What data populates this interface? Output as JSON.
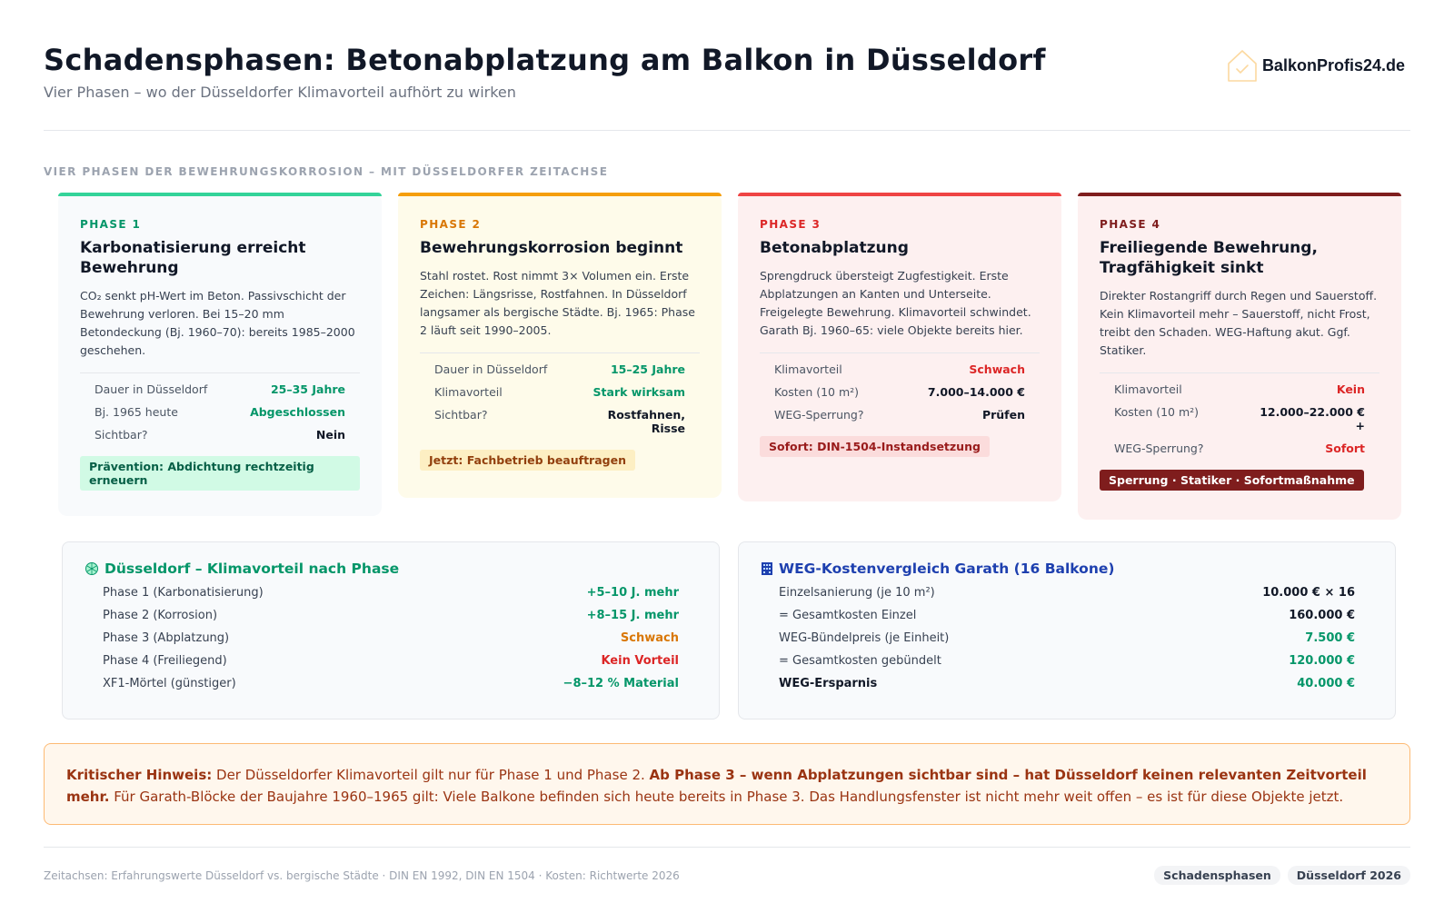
{
  "header": {
    "title": "Schadensphasen: Betonabplatzung am Balkon in Düsseldorf",
    "subtitle": "Vier Phasen – wo der Düsseldorfer Klimavorteil aufhört zu wirken",
    "logo_text": "BalkonProfis24.de"
  },
  "section_label": "VIER PHASEN DER BEWEHRUNGSKORROSION – MIT DÜSSELDORFER ZEITACHSE",
  "phases": [
    {
      "num": "PHASE 1",
      "title": "Karbonatisierung erreicht Bewehrung",
      "desc": "CO₂ senkt pH-Wert im Beton. Passivschicht der Bewehrung verloren. Bei 15–20 mm Betondeckung (Bj. 1960–70): bereits 1985–2000 geschehen.",
      "rows": [
        {
          "k": "Dauer in Düsseldorf",
          "v": "25–35 Jahre"
        },
        {
          "k": "Bj. 1965 heute",
          "v": "Abgeschlossen"
        },
        {
          "k": "Sichtbar?",
          "v": "Nein"
        }
      ],
      "tag": "Prävention: Abdichtung rechtzeitig erneuern",
      "accent": "#34d399"
    },
    {
      "num": "PHASE 2",
      "title": "Bewehrungskorrosion beginnt",
      "desc": "Stahl rostet. Rost nimmt 3× Volumen ein. Erste Zeichen: Längsrisse, Rostfahnen. In Düsseldorf langsamer als bergische Städte. Bj. 1965: Phase 2 läuft seit 1990–2005.",
      "rows": [
        {
          "k": "Dauer in Düsseldorf",
          "v": "15–25 Jahre"
        },
        {
          "k": "Klimavorteil",
          "v": "Stark wirksam"
        },
        {
          "k": "Sichtbar?",
          "v": "Rostfahnen, Risse"
        }
      ],
      "tag": "Jetzt: Fachbetrieb beauftragen",
      "accent": "#f59e0b"
    },
    {
      "num": "PHASE 3",
      "title": "Betonabplatzung",
      "desc": "Sprengdruck übersteigt Zugfestigkeit. Erste Abplatzungen an Kanten und Unterseite. Freigelegte Bewehrung. Klimavorteil schwindet. Garath Bj. 1960–65: viele Objekte bereits hier.",
      "rows": [
        {
          "k": "Klimavorteil",
          "v": "Schwach"
        },
        {
          "k": "Kosten (10 m²)",
          "v": "7.000–14.000 €"
        },
        {
          "k": "WEG-Sperrung?",
          "v": "Prüfen"
        }
      ],
      "tag": "Sofort: DIN-1504-Instandsetzung",
      "accent": "#ef4444"
    },
    {
      "num": "PHASE 4",
      "title": "Freiliegende Bewehrung, Tragfähigkeit sinkt",
      "desc": "Direkter Rostangriff durch Regen und Sauerstoff. Kein Klimavorteil mehr – Sauerstoff, nicht Frost, treibt den Schaden. WEG-Haftung akut. Ggf. Statiker.",
      "rows": [
        {
          "k": "Klimavorteil",
          "v": "Kein"
        },
        {
          "k": "Kosten (10 m²)",
          "v": "12.000–22.000 €+"
        },
        {
          "k": "WEG-Sperrung?",
          "v": "Sofort"
        }
      ],
      "tag": "Sperrung · Statiker · Sofortmaßnahme",
      "accent": "#7f1d1d"
    }
  ],
  "climate_box": {
    "icon": "globe-icon",
    "title": "Düsseldorf – Klimavorteil nach Phase",
    "rows": [
      {
        "k": "Phase 1 (Karbonatisierung)",
        "v": "+5–10 J. mehr"
      },
      {
        "k": "Phase 2 (Korrosion)",
        "v": "+8–15 J. mehr"
      },
      {
        "k": "Phase 3 (Abplatzung)",
        "v": "Schwach"
      },
      {
        "k": "Phase 4 (Freiliegend)",
        "v": "Kein Vorteil"
      },
      {
        "k": "XF1-Mörtel (günstiger)",
        "v": "−8–12 % Material"
      }
    ]
  },
  "cost_box": {
    "icon": "building-icon",
    "title": "WEG-Kostenvergleich Garath (16 Balkone)",
    "rows": [
      {
        "k": "Einzelsanierung (je 10 m²)",
        "v": "10.000 € × 16"
      },
      {
        "k": "= Gesamtkosten Einzel",
        "v": "160.000 €"
      },
      {
        "k": "WEG-Bündelpreis (je Einheit)",
        "v": "7.500 €"
      },
      {
        "k": "= Gesamtkosten gebündelt",
        "v": "120.000 €"
      },
      {
        "k": "WEG-Ersparnis",
        "v": "40.000 €"
      }
    ]
  },
  "notice": {
    "lead": "Kritischer Hinweis:",
    "text1": " Der Düsseldorfer Klimavorteil gilt nur für Phase 1 und Phase 2. ",
    "bold": "Ab Phase 3 – wenn Abplatzungen sichtbar sind – hat Düsseldorf keinen relevanten Zeitvorteil mehr.",
    "text2": " Für Garath-Blöcke der Baujahre 1960–1965 gilt: Viele Balkone befinden sich heute bereits in Phase 3. Das Handlungsfenster ist nicht mehr weit offen – es ist für diese Objekte jetzt."
  },
  "footer": {
    "text": "Zeitachsen: Erfahrungswerte Düsseldorf vs. bergische Städte · DIN EN 1992, DIN EN 1504 · Kosten: Richtwerte 2026",
    "tags": [
      "Schadensphasen",
      "Düsseldorf 2026"
    ]
  }
}
